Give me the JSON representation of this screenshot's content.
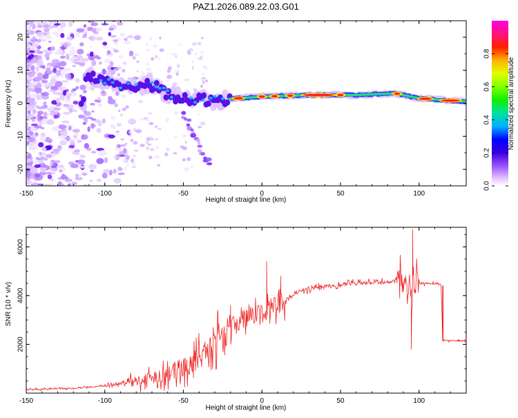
{
  "title": "PAZ1.2026.089.22.03.G01",
  "chart_data": [
    {
      "type": "heatmap",
      "name": "spectrogram",
      "xlabel": "Height of straight line (km)",
      "ylabel": "Frequency (Hz)",
      "xlim": [
        -150,
        130
      ],
      "ylim": [
        -25,
        25
      ],
      "xticks": [
        -150,
        -100,
        -50,
        0,
        50,
        100
      ],
      "xtick_labels": [
        "-150",
        "-100",
        "-50",
        "0",
        "50",
        "100"
      ],
      "yticks": [
        -20,
        -10,
        0,
        10,
        20
      ],
      "ytick_labels": [
        "-20",
        "-10",
        "0",
        "10",
        "20"
      ],
      "ridge": {
        "description_points": [
          {
            "x": -112,
            "freq": 8
          },
          {
            "x": -100,
            "freq": 7
          },
          {
            "x": -85,
            "freq": 5
          },
          {
            "x": -72,
            "freq": 6
          },
          {
            "x": -60,
            "freq": 3
          },
          {
            "x": -50,
            "freq": 1
          },
          {
            "x": -30,
            "freq": 1
          },
          {
            "x": 0,
            "freq": 2
          },
          {
            "x": 30,
            "freq": 2.5
          },
          {
            "x": 60,
            "freq": 2.5
          },
          {
            "x": 85,
            "freq": 3
          },
          {
            "x": 100,
            "freq": 1.5
          },
          {
            "x": 130,
            "freq": 0.5
          }
        ]
      },
      "branch": [
        {
          "x": -50,
          "freq": -3
        },
        {
          "x": -45,
          "freq": -8
        },
        {
          "x": -38,
          "freq": -15
        },
        {
          "x": -33,
          "freq": -19
        }
      ],
      "colorbar": {
        "label": "Normalized spectral amplitude",
        "range": [
          0,
          1
        ],
        "ticks": [
          0.0,
          0.2,
          0.4,
          0.6,
          0.8
        ],
        "tick_labels": [
          "0.0",
          "0.2",
          "0.4",
          "0.6",
          "0.8"
        ],
        "colors": [
          "#ffffff",
          "#b07bff",
          "#5a00d8",
          "#0000ff",
          "#00c8ff",
          "#00e070",
          "#20ff00",
          "#c8ff00",
          "#ffff00",
          "#ffa000",
          "#ff0000",
          "#ff1493",
          "#ff00ff"
        ]
      }
    },
    {
      "type": "line",
      "name": "snr",
      "xlabel": "Height of straight line (km)",
      "ylabel": "SNR (10 * v/v)",
      "xlim": [
        -150,
        130
      ],
      "ylim": [
        0,
        6800
      ],
      "xticks": [
        -150,
        -100,
        -50,
        0,
        50,
        100
      ],
      "xtick_labels": [
        "-150",
        "-100",
        "-50",
        "0",
        "50",
        "100"
      ],
      "yticks": [
        2000,
        4000,
        6000
      ],
      "ytick_labels": [
        "2000",
        "4000",
        "6000"
      ],
      "color": "#ee2222",
      "anchor_points": [
        {
          "x": -150,
          "y": 150
        },
        {
          "x": -120,
          "y": 200
        },
        {
          "x": -100,
          "y": 300
        },
        {
          "x": -80,
          "y": 500
        },
        {
          "x": -60,
          "y": 800
        },
        {
          "x": -45,
          "y": 1200
        },
        {
          "x": -35,
          "y": 1800
        },
        {
          "x": -25,
          "y": 2400
        },
        {
          "x": -15,
          "y": 2900
        },
        {
          "x": -5,
          "y": 3200
        },
        {
          "x": 5,
          "y": 3500
        },
        {
          "x": 15,
          "y": 3800
        },
        {
          "x": 25,
          "y": 4200
        },
        {
          "x": 40,
          "y": 4400
        },
        {
          "x": 60,
          "y": 4500
        },
        {
          "x": 80,
          "y": 4550
        },
        {
          "x": 90,
          "y": 4600
        },
        {
          "x": 95,
          "y": 4300
        },
        {
          "x": 100,
          "y": 4500
        },
        {
          "x": 114,
          "y": 4500
        },
        {
          "x": 115,
          "y": 2150
        },
        {
          "x": 130,
          "y": 2150
        }
      ],
      "spikes": [
        {
          "x": 3,
          "y": 5400
        },
        {
          "x": 96,
          "y": 6700
        },
        {
          "x": 95,
          "y": 1800
        },
        {
          "x": -20,
          "y": 3600
        },
        {
          "x": -28,
          "y": 3300
        },
        {
          "x": 12,
          "y": 4800
        }
      ]
    }
  ]
}
